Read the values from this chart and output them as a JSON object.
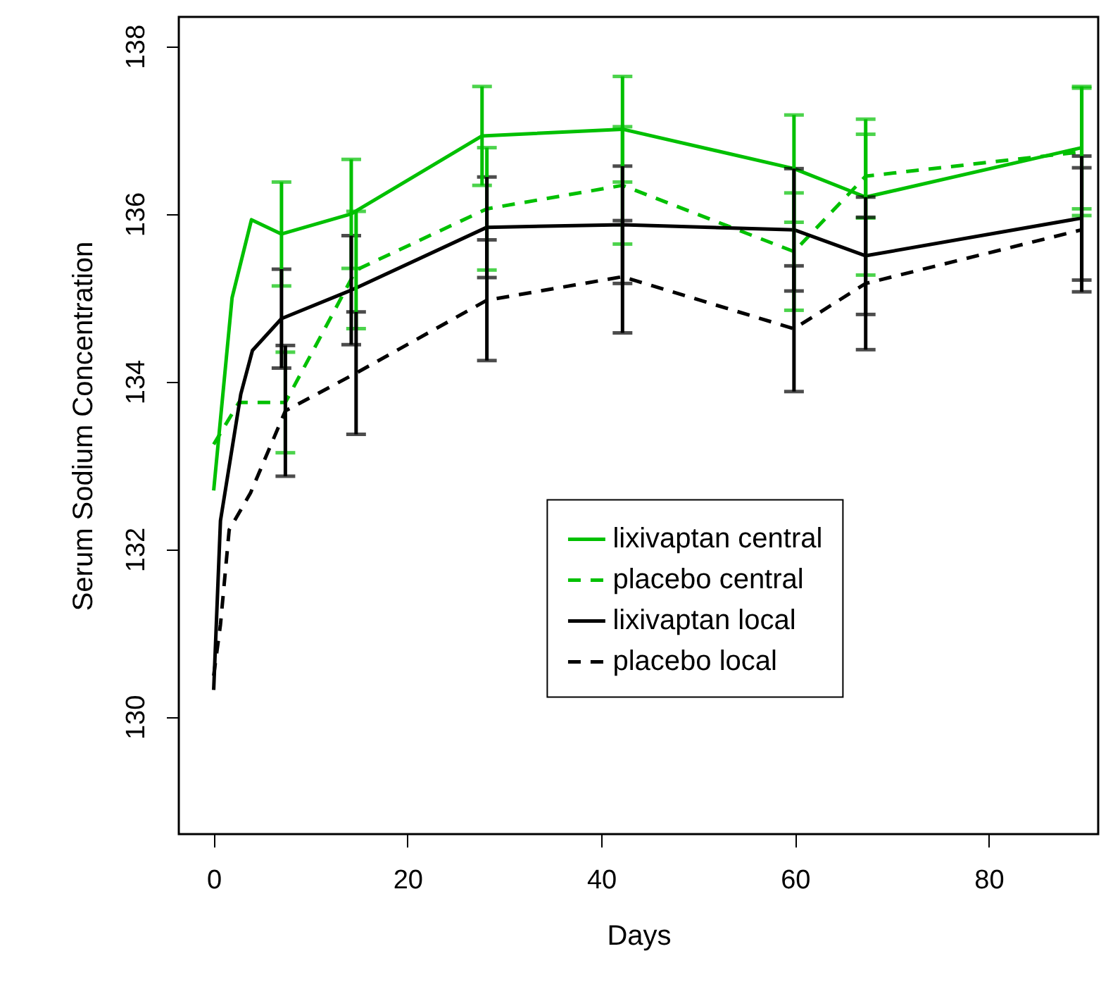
{
  "chart_data": {
    "type": "line",
    "xlabel": "Days",
    "ylabel": "Serum Sodium Concentration",
    "xlim": [
      -3.6,
      91.3
    ],
    "xticks": [
      0,
      20,
      40,
      60,
      80
    ],
    "ylim": [
      128.6,
      138.35
    ],
    "yticks": [
      130,
      132,
      134,
      136,
      138
    ],
    "grid": false,
    "legend": "bottom right",
    "marker": "none",
    "series": [
      {
        "name": "lixivaptan central",
        "color": "#00c000",
        "line_style": "solid",
        "x": [
          0,
          1.9,
          3.9,
          7,
          14.2,
          27.7,
          42.2,
          59.9,
          67.3,
          89.6
        ],
        "values": [
          132.7,
          135.0,
          135.93,
          135.76,
          136.0,
          136.93,
          137.01,
          136.54,
          136.2,
          136.79
        ],
        "errors": [
          null,
          null,
          null,
          0.62,
          0.65,
          0.59,
          0.63,
          0.64,
          0.93,
          0.73
        ]
      },
      {
        "name": "placebo central",
        "color": "#00c000",
        "line_style": "dashed",
        "x": [
          0,
          2.6,
          7.4,
          14.7,
          28.2,
          42.2,
          59.9,
          67.3,
          89.6
        ],
        "values": [
          133.25,
          133.75,
          133.75,
          135.33,
          136.06,
          136.34,
          135.55,
          136.45,
          136.74
        ],
        "errors": [
          null,
          null,
          0.6,
          0.7,
          0.73,
          0.7,
          0.7,
          0.5,
          0.76
        ]
      },
      {
        "name": "lixivaptan local",
        "color": "#000000",
        "line_style": "solid",
        "x": [
          0,
          0.7,
          2.8,
          4,
          7,
          14.2,
          28.2,
          42.2,
          59.9,
          67.3,
          89.6
        ],
        "values": [
          130.32,
          132.34,
          133.85,
          134.37,
          134.75,
          135.09,
          135.84,
          135.87,
          135.81,
          135.5,
          135.95
        ],
        "errors": [
          null,
          null,
          null,
          null,
          0.59,
          0.65,
          0.6,
          0.7,
          0.73,
          0.7,
          0.74
        ]
      },
      {
        "name": "placebo local",
        "color": "#000000",
        "line_style": "dashed",
        "x": [
          0,
          0.7,
          1.6,
          3.8,
          7.4,
          14.7,
          28.2,
          42.2,
          59.9,
          67.3,
          89.6
        ],
        "values": [
          130.49,
          131.1,
          132.23,
          132.67,
          133.65,
          134.1,
          134.97,
          135.25,
          134.63,
          135.17,
          135.81
        ],
        "errors": [
          null,
          null,
          null,
          null,
          0.78,
          0.73,
          0.72,
          0.67,
          0.75,
          0.79,
          0.74
        ]
      }
    ]
  }
}
